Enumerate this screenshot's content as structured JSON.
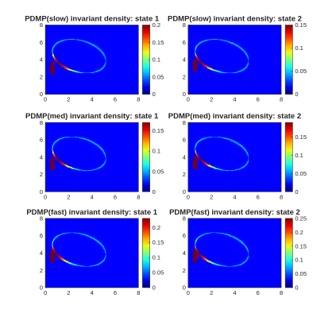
{
  "colors": {
    "figure_background": "#ffffff",
    "colormap": "jet",
    "axes_box": "#262626"
  },
  "chart_data": [
    {
      "type": "heatmap",
      "title": "PDMP(slow) invariant density: state 1",
      "xlim": [
        0,
        8
      ],
      "ylim": [
        0,
        8
      ],
      "xticks": [
        "0",
        "2",
        "4",
        "6",
        "8"
      ],
      "yticks": [
        "0",
        "2",
        "4",
        "6",
        "8"
      ],
      "colorbar": {
        "range": [
          0,
          0.2
        ],
        "ticks": [
          "0",
          "0.05",
          "0.1",
          "0.15",
          "0.2"
        ]
      },
      "cycle": {
        "center": [
          2.9,
          4.4
        ],
        "rx": 2.45,
        "ry": 1.75,
        "tilt_deg": -30
      },
      "peak": {
        "x": 0.6,
        "y": 3.0,
        "value": 0.2
      },
      "grid": false,
      "colormap": "jet"
    },
    {
      "type": "heatmap",
      "title": "PDMP(slow) invariant density: state 2",
      "xlim": [
        0,
        8
      ],
      "ylim": [
        0,
        8
      ],
      "xticks": [
        "0",
        "2",
        "4",
        "6",
        "8"
      ],
      "yticks": [
        "0",
        "2",
        "4",
        "6",
        "8"
      ],
      "colorbar": {
        "range": [
          0,
          0.15
        ],
        "ticks": [
          "0",
          "0.05",
          "0.1",
          "0.15"
        ]
      },
      "cycle": {
        "center": [
          2.9,
          4.4
        ],
        "rx": 2.45,
        "ry": 1.75,
        "tilt_deg": -30
      },
      "peak": {
        "x": 0.6,
        "y": 3.3,
        "value": 0.15
      },
      "grid": false,
      "colormap": "jet"
    },
    {
      "type": "heatmap",
      "title": "PDMP(med) invariant density: state 1",
      "xlim": [
        0,
        8
      ],
      "ylim": [
        0,
        8
      ],
      "xticks": [
        "0",
        "2",
        "4",
        "6",
        "8"
      ],
      "yticks": [
        "0",
        "2",
        "4",
        "6",
        "8"
      ],
      "colorbar": {
        "range": [
          0,
          0.17
        ],
        "ticks": [
          "0",
          "0.05",
          "0.1",
          "0.15"
        ]
      },
      "cycle": {
        "center": [
          2.9,
          4.4
        ],
        "rx": 2.45,
        "ry": 1.75,
        "tilt_deg": -30
      },
      "peak": {
        "x": 0.6,
        "y": 3.2,
        "value": 0.17
      },
      "grid": false,
      "colormap": "jet"
    },
    {
      "type": "heatmap",
      "title": "PDMP(med) invariant density: state 2",
      "xlim": [
        0,
        8
      ],
      "ylim": [
        0,
        8
      ],
      "xticks": [
        "0",
        "2",
        "4",
        "6",
        "8"
      ],
      "yticks": [
        "0",
        "2",
        "4",
        "6",
        "8"
      ],
      "colorbar": {
        "range": [
          0,
          0.19
        ],
        "ticks": [
          "0",
          "0.05",
          "0.1",
          "0.15"
        ]
      },
      "cycle": {
        "center": [
          2.9,
          4.4
        ],
        "rx": 2.45,
        "ry": 1.75,
        "tilt_deg": -30
      },
      "peak": {
        "x": 0.6,
        "y": 3.3,
        "value": 0.19
      },
      "grid": false,
      "colormap": "jet"
    },
    {
      "type": "heatmap",
      "title": "PDMP(fast) invariant density: state 1",
      "xlim": [
        0,
        8
      ],
      "ylim": [
        0,
        8
      ],
      "xticks": [
        "0",
        "2",
        "4",
        "6",
        "8"
      ],
      "yticks": [
        "0",
        "2",
        "4",
        "6",
        "8"
      ],
      "colorbar": {
        "range": [
          0,
          0.23
        ],
        "ticks": [
          "0",
          "0.05",
          "0.1",
          "0.15",
          "0.2"
        ]
      },
      "cycle": {
        "center": [
          2.9,
          4.4
        ],
        "rx": 2.45,
        "ry": 1.75,
        "tilt_deg": -30
      },
      "peak": {
        "x": 0.6,
        "y": 3.6,
        "value": 0.23
      },
      "grid": false,
      "colormap": "jet"
    },
    {
      "type": "heatmap",
      "title": "PDMP(fast) invariant density: state 2",
      "xlim": [
        0,
        8
      ],
      "ylim": [
        0,
        8
      ],
      "xticks": [
        "0",
        "2",
        "4",
        "6",
        "8"
      ],
      "yticks": [
        "0",
        "2",
        "4",
        "6",
        "8"
      ],
      "colorbar": {
        "range": [
          0,
          0.25
        ],
        "ticks": [
          "0",
          "0.05",
          "0.1",
          "0.15",
          "0.2",
          "0.25"
        ]
      },
      "cycle": {
        "center": [
          2.9,
          4.4
        ],
        "rx": 2.45,
        "ry": 1.75,
        "tilt_deg": -30
      },
      "peak": {
        "x": 0.6,
        "y": 3.6,
        "value": 0.25
      },
      "grid": false,
      "colormap": "jet"
    }
  ]
}
